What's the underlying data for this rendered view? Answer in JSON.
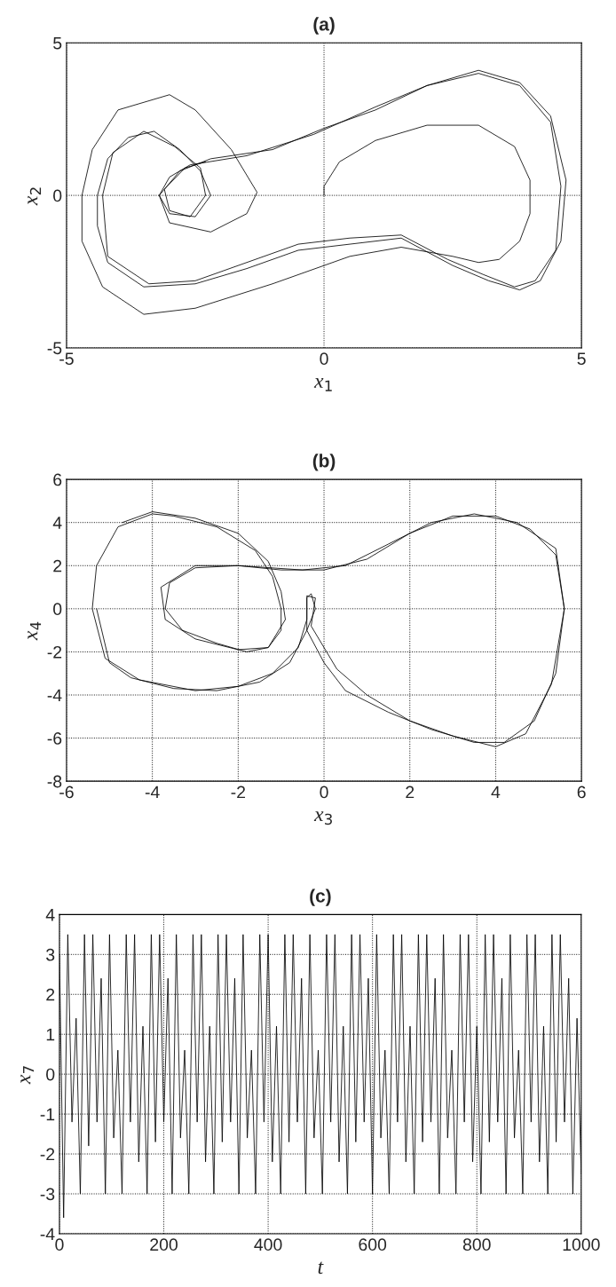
{
  "chart_data": [
    {
      "type": "line",
      "title": "(a)",
      "xlabel": "x$_{1}$",
      "ylabel": "x$_{2}$",
      "xlim": [
        -5,
        5
      ],
      "ylim": [
        -5,
        5
      ],
      "xticks": [
        -5,
        0,
        5
      ],
      "yticks": [
        -5,
        0,
        5
      ],
      "grid": true,
      "series": [
        {
          "color": "#000000",
          "x": [
            0,
            0,
            0.3,
            1,
            2,
            3,
            3.7,
            4,
            4,
            3.8,
            3.4,
            3,
            2.5,
            1.5,
            0.5,
            0,
            -1,
            -2.5,
            -3.5,
            -4.3,
            -4.7,
            -4.7,
            -4.5,
            -4,
            -3,
            -2.5,
            -1.8,
            -1.3,
            -1.5,
            -2.2,
            -3,
            -3.2,
            -2.8,
            -2.2,
            -1,
            0,
            1,
            2,
            3,
            3.8,
            4.4,
            4.7,
            4.6,
            4.2,
            3.8,
            3.2,
            2.5,
            1.5,
            0.5,
            -0.5,
            -1.5,
            -2.5,
            -3.5,
            -4.2,
            -4.4,
            -4.4,
            -4.2,
            -3.8,
            -3.3,
            -2.8,
            -2.4,
            -2.2,
            -2.5,
            -3,
            -3.2,
            -3,
            -2.6,
            -1.5,
            -0.2,
            1,
            2,
            3,
            3.8,
            4.4,
            4.6,
            4.5,
            4.1,
            3.7,
            3.1,
            2.4,
            1.5,
            0.5,
            -0.5,
            -1.5,
            -2.5,
            -3.4,
            -4.2,
            -4.3,
            -4.1,
            -3.5,
            -2.9,
            -2.4,
            -2.3,
            -2.6,
            -3,
            -3.1,
            -2.7,
            -2.3
          ],
          "values": [
            0,
            0.3,
            1.1,
            1.8,
            2.3,
            2.3,
            1.6,
            0.5,
            -0.6,
            -1.5,
            -2.1,
            -2.2,
            -2.0,
            -1.7,
            -2.0,
            -2.3,
            -2.9,
            -3.7,
            -3.9,
            -3.0,
            -1.5,
            0,
            1.5,
            2.8,
            3.3,
            2.8,
            1.5,
            0.1,
            -0.6,
            -1.2,
            -0.9,
            0,
            0.8,
            1.2,
            1.5,
            2.2,
            2.8,
            3.6,
            4.1,
            3.7,
            2.6,
            0.5,
            -1.5,
            -2.8,
            -3.1,
            -2.8,
            -2.3,
            -1.4,
            -1.6,
            -1.8,
            -2.4,
            -2.9,
            -3.0,
            -2.2,
            -1,
            0,
            1.2,
            1.9,
            2.1,
            1.5,
            0.8,
            0,
            -0.7,
            -0.6,
            0,
            0.6,
            1,
            1.3,
            2.0,
            2.9,
            3.6,
            4.0,
            3.6,
            2.4,
            0.3,
            -1.8,
            -2.8,
            -3.0,
            -2.6,
            -2.1,
            -1.3,
            -1.4,
            -1.6,
            -2.2,
            -2.8,
            -2.9,
            -2.0,
            0,
            1.4,
            2.1,
            1.6,
            0.9,
            0,
            -0.7,
            -0.5,
            0.2,
            0.9,
            1.1
          ]
        }
      ]
    },
    {
      "type": "line",
      "title": "(b)",
      "xlabel": "x$_{3}$",
      "ylabel": "x$_{4}$",
      "xlim": [
        -6,
        6
      ],
      "ylim": [
        -8,
        6
      ],
      "xticks": [
        -6,
        -4,
        -2,
        0,
        2,
        4,
        6
      ],
      "yticks": [
        -8,
        -6,
        -4,
        -2,
        0,
        2,
        4,
        6
      ],
      "grid": true,
      "series": [
        {
          "color": "#000000",
          "x": [
            -5.3,
            -5.0,
            -4.5,
            -3.5,
            -2.5,
            -1.5,
            -0.8,
            -0.4,
            -0.4,
            -0.3,
            -0.2,
            -0.4,
            0,
            0.5,
            1.5,
            2.5,
            3.5,
            4.2,
            4.9,
            5.4,
            5.6,
            5.4,
            4.8,
            4,
            3,
            2,
            1,
            0,
            -1,
            -2,
            -3,
            -3.6,
            -3.7,
            -3.3,
            -2.5,
            -1.8,
            -1.3,
            -1,
            -1,
            -1.2,
            -1.6,
            -2.5,
            -3.5,
            -4,
            -4.8,
            -5.3,
            -5.4,
            -5.1,
            -4.3,
            -3,
            -2,
            -1.2,
            -0.6,
            -0.4,
            -0.4,
            -0.2,
            -0.3,
            0.3,
            1,
            2,
            3,
            4,
            4.7,
            5.3,
            5.6,
            5.4,
            4.5,
            3.5,
            2.5,
            1.5,
            0.5,
            -0.5,
            -2,
            -3,
            -3.8,
            -3.7,
            -3,
            -2,
            -1.3,
            -0.9,
            -1,
            -1.3,
            -2,
            -3,
            -4,
            -4.7
          ],
          "values": [
            0,
            -2.5,
            -3.2,
            -3.7,
            -3.8,
            -3.4,
            -2.5,
            -1.0,
            0.5,
            0.7,
            0,
            -1,
            -2.5,
            -3.8,
            -4.8,
            -5.6,
            -6.2,
            -6.2,
            -5.2,
            -3,
            0,
            2.5,
            3.7,
            4.3,
            4.3,
            3.5,
            2.3,
            1.8,
            1.8,
            2.0,
            1.9,
            1.2,
            0,
            -1,
            -1.6,
            -2.0,
            -1.8,
            -1,
            0,
            1.5,
            2.7,
            3.8,
            4.3,
            4.4,
            3.8,
            2,
            0,
            -2.3,
            -3.3,
            -3.8,
            -3.6,
            -3,
            -1.8,
            -0.5,
            0.6,
            0.5,
            -0.8,
            -2.8,
            -4,
            -5.2,
            -5.9,
            -6.4,
            -5.8,
            -3.5,
            0,
            2.8,
            4.0,
            4.4,
            4.0,
            3.0,
            2.0,
            1.8,
            2.0,
            2.0,
            1,
            -0.5,
            -1.4,
            -1.9,
            -1.8,
            -0.5,
            0.8,
            2.2,
            3.5,
            4.2,
            4.5,
            4
          ]
        }
      ]
    },
    {
      "type": "line",
      "title": "(c)",
      "xlabel": "t",
      "ylabel": "x$_{7}$",
      "xlim": [
        0,
        1000
      ],
      "ylim": [
        -4,
        4
      ],
      "xticks": [
        0,
        200,
        400,
        600,
        800,
        1000
      ],
      "yticks": [
        -4,
        -3,
        -2,
        -1,
        0,
        1,
        2,
        3,
        4
      ],
      "grid": true,
      "series": [
        {
          "color": "#000000",
          "x": [
            0,
            8,
            16,
            24,
            32,
            40,
            48,
            56,
            64,
            72,
            80,
            88,
            96,
            104,
            112,
            120,
            128,
            136,
            144,
            152,
            160,
            168,
            176,
            184,
            192,
            200,
            208,
            216,
            224,
            232,
            240,
            248,
            256,
            264,
            272,
            280,
            288,
            296,
            304,
            312,
            320,
            328,
            336,
            344,
            352,
            360,
            368,
            376,
            384,
            392,
            400,
            408,
            416,
            424,
            432,
            440,
            448,
            456,
            464,
            472,
            480,
            488,
            496,
            504,
            512,
            520,
            528,
            536,
            544,
            552,
            560,
            568,
            576,
            584,
            592,
            600,
            608,
            616,
            624,
            632,
            640,
            648,
            656,
            664,
            672,
            680,
            688,
            696,
            704,
            712,
            720,
            728,
            736,
            744,
            752,
            760,
            768,
            776,
            784,
            792,
            800,
            808,
            816,
            824,
            832,
            840,
            848,
            856,
            864,
            872,
            880,
            888,
            896,
            904,
            912,
            920,
            928,
            936,
            944,
            952,
            960,
            968,
            976,
            984,
            992,
            1000
          ],
          "values": [
            3.0,
            -3.6,
            3.5,
            -1.2,
            1.4,
            -3.0,
            3.5,
            -1.8,
            3.5,
            -1.2,
            2.4,
            -3.0,
            3.5,
            -1.6,
            0.6,
            -3.0,
            3.5,
            -1.2,
            3.5,
            -2.2,
            1.2,
            -3.0,
            3.5,
            -1.7,
            3.5,
            -1.2,
            2.4,
            -3.0,
            3.5,
            -1.6,
            0.6,
            -3.0,
            3.5,
            -1.2,
            3.5,
            -2.2,
            1.2,
            -3.0,
            3.5,
            -1.7,
            3.5,
            -1.2,
            2.4,
            -3.0,
            3.5,
            -1.6,
            0.6,
            -3.0,
            3.5,
            -1.2,
            3.5,
            -2.2,
            1.2,
            -3.0,
            3.5,
            -1.7,
            3.5,
            -1.2,
            2.4,
            -3.0,
            3.5,
            -1.6,
            0.6,
            -3.0,
            3.5,
            -1.2,
            3.5,
            -2.2,
            1.2,
            -3.0,
            3.5,
            -1.7,
            3.5,
            -1.2,
            2.4,
            -3.0,
            3.5,
            -1.6,
            0.6,
            -3.0,
            3.5,
            -1.2,
            3.5,
            -2.2,
            1.2,
            -3.0,
            3.5,
            -1.7,
            3.5,
            -1.2,
            2.4,
            -3.0,
            3.5,
            -1.6,
            0.6,
            -3.0,
            3.5,
            -1.2,
            3.5,
            -2.2,
            1.2,
            -3.0,
            3.5,
            -1.7,
            3.5,
            -1.2,
            2.4,
            -3.0,
            3.5,
            -1.6,
            0.6,
            -3.0,
            3.5,
            -1.2,
            3.5,
            -2.2,
            1.2,
            -3.0,
            3.5,
            -1.7,
            3.5,
            -1.2,
            2.4,
            -3.0,
            1.4,
            -2.5
          ]
        }
      ]
    }
  ]
}
